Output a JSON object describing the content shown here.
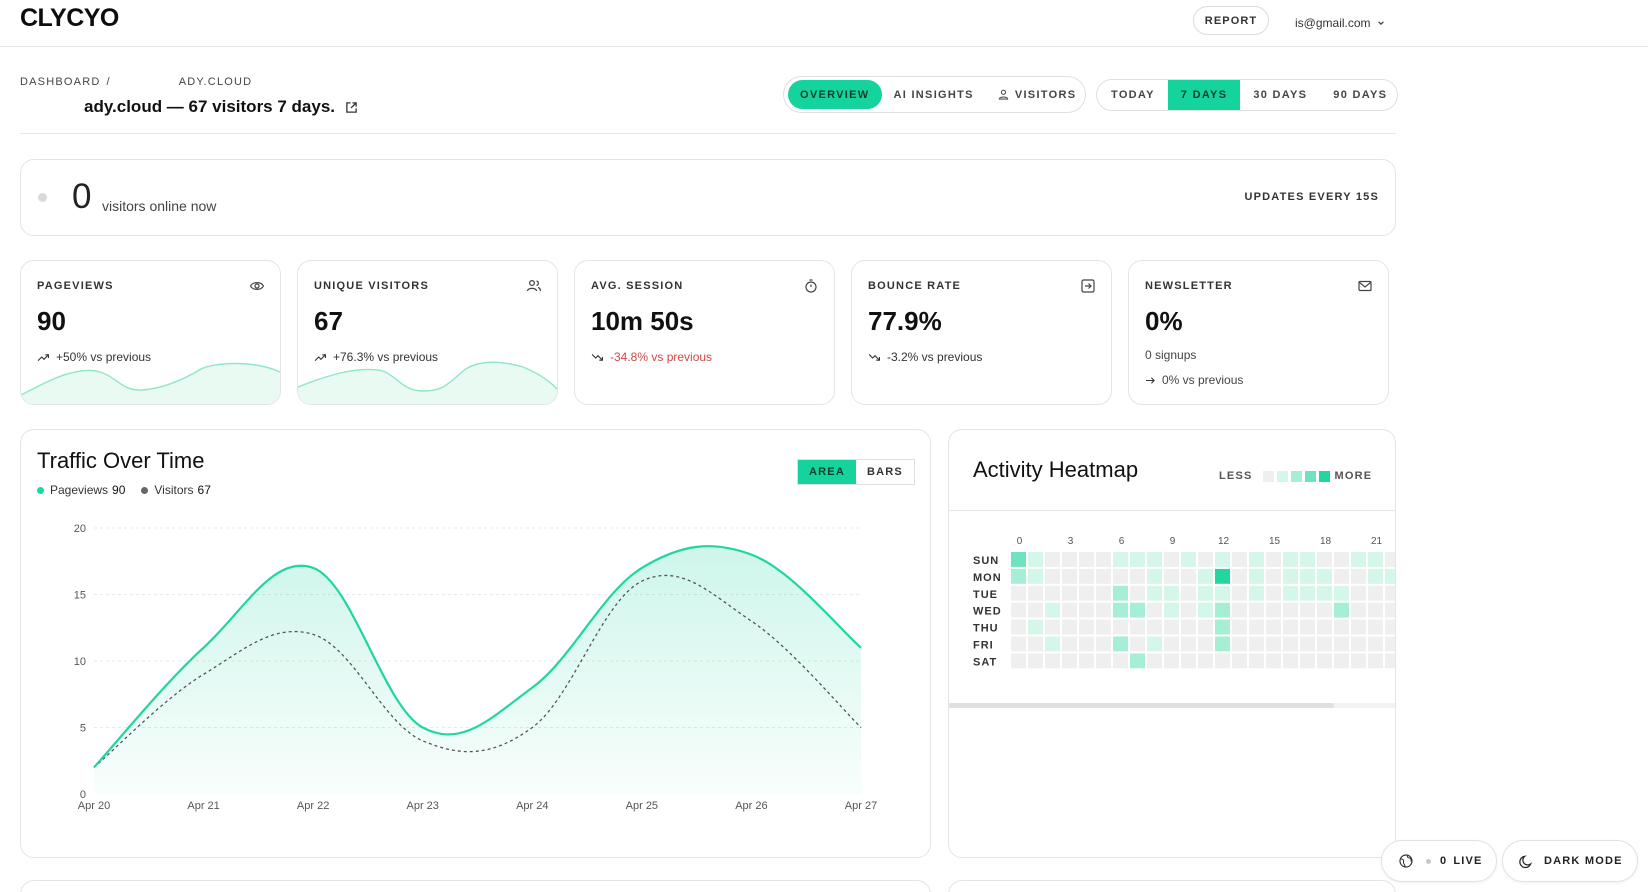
{
  "app": {
    "logo": "CLYCYO"
  },
  "topbar": {
    "report_label": "REPORT",
    "user_email": "is@gmail.com"
  },
  "header": {
    "breadcrumb_root": "DASHBOARD",
    "breadcrumb_sep": "/",
    "breadcrumb_site": "ADY.CLOUD",
    "title": "ady.cloud — 67 visitors 7 days."
  },
  "nav_tabs": [
    {
      "label": "OVERVIEW",
      "active": true
    },
    {
      "label": "AI INSIGHTS",
      "active": false
    },
    {
      "label": "VISITORS",
      "active": false
    }
  ],
  "ranges": [
    {
      "label": "TODAY",
      "active": false
    },
    {
      "label": "7 DAYS",
      "active": true
    },
    {
      "label": "30 DAYS",
      "active": false
    },
    {
      "label": "90 DAYS",
      "active": false
    }
  ],
  "online": {
    "count": "0",
    "label": "visitors online now",
    "updates": "UPDATES EVERY 15S"
  },
  "stats": [
    {
      "label": "PAGEVIEWS",
      "icon": "eye-icon",
      "value": "90",
      "change": "+50% vs previous",
      "trend": "up"
    },
    {
      "label": "UNIQUE VISITORS",
      "icon": "users-icon",
      "value": "67",
      "change": "+76.3% vs previous",
      "trend": "up"
    },
    {
      "label": "AVG. SESSION",
      "icon": "stopwatch-icon",
      "value": "10m 50s",
      "change": "-34.8% vs previous",
      "trend": "down-bad"
    },
    {
      "label": "BOUNCE RATE",
      "icon": "exit-icon",
      "value": "77.9%",
      "change": "-3.2% vs previous",
      "trend": "down"
    },
    {
      "label": "NEWSLETTER",
      "icon": "mail-icon",
      "value": "0%",
      "sub": "0 signups",
      "change": "0% vs previous",
      "trend": "flat"
    }
  ],
  "traffic": {
    "title": "Traffic Over Time",
    "legend_pageviews": "Pageviews",
    "legend_pageviews_value": "90",
    "legend_visitors": "Visitors",
    "legend_visitors_value": "67",
    "toggle_area": "AREA",
    "toggle_bars": "BARS"
  },
  "chart_data": {
    "type": "area",
    "x": [
      "Apr 20",
      "Apr 21",
      "Apr 22",
      "Apr 23",
      "Apr 24",
      "Apr 25",
      "Apr 26",
      "Apr 27"
    ],
    "series": [
      {
        "name": "Pageviews",
        "values": [
          2,
          11,
          17,
          5,
          8,
          17,
          18,
          11
        ],
        "color": "#1fd6a0"
      },
      {
        "name": "Visitors",
        "values": [
          2,
          9,
          12,
          4,
          5,
          16,
          13,
          5
        ],
        "color": "#555555"
      }
    ],
    "yticks": [
      0,
      5,
      10,
      15,
      20
    ],
    "ylim": [
      0,
      20
    ],
    "grid": true
  },
  "heatmap": {
    "title": "Activity Heatmap",
    "less": "LESS",
    "more": "MORE",
    "days": [
      "SUN",
      "MON",
      "TUE",
      "WED",
      "THU",
      "FRI",
      "SAT"
    ],
    "hour_labels": [
      "0",
      "3",
      "6",
      "9",
      "12",
      "15",
      "18",
      "21"
    ],
    "colors": [
      "#efefef",
      "#d4f7ea",
      "#a6efd5",
      "#6fe3bf",
      "#22d6a0"
    ],
    "levels": [
      [
        3,
        1,
        0,
        0,
        0,
        0,
        1,
        1,
        1,
        0,
        1,
        0,
        1,
        0,
        1,
        0,
        1,
        1,
        0,
        0,
        1,
        1,
        0,
        3
      ],
      [
        2,
        1,
        0,
        0,
        0,
        0,
        0,
        0,
        1,
        0,
        0,
        1,
        4,
        0,
        1,
        0,
        1,
        1,
        1,
        0,
        0,
        1,
        1,
        0
      ],
      [
        0,
        0,
        0,
        0,
        0,
        0,
        2,
        0,
        1,
        1,
        0,
        1,
        1,
        0,
        1,
        0,
        1,
        1,
        1,
        1,
        0,
        0,
        0,
        1
      ],
      [
        0,
        0,
        1,
        0,
        0,
        0,
        2,
        2,
        0,
        1,
        0,
        1,
        2,
        0,
        0,
        0,
        0,
        0,
        0,
        2,
        0,
        0,
        0,
        2
      ],
      [
        0,
        1,
        0,
        0,
        0,
        0,
        0,
        0,
        0,
        0,
        0,
        0,
        2,
        0,
        0,
        0,
        0,
        0,
        0,
        0,
        0,
        0,
        0,
        0
      ],
      [
        0,
        0,
        1,
        0,
        0,
        0,
        2,
        0,
        1,
        0,
        0,
        0,
        2,
        0,
        0,
        0,
        0,
        0,
        0,
        0,
        0,
        0,
        0,
        0
      ],
      [
        0,
        0,
        0,
        0,
        0,
        0,
        0,
        2,
        0,
        0,
        0,
        0,
        0,
        0,
        0,
        0,
        0,
        0,
        0,
        0,
        0,
        0,
        0,
        2
      ]
    ]
  },
  "floating": {
    "live_count": "0",
    "live_label": "LIVE",
    "dark_mode": "DARK MODE"
  },
  "accent": "#15d39c"
}
